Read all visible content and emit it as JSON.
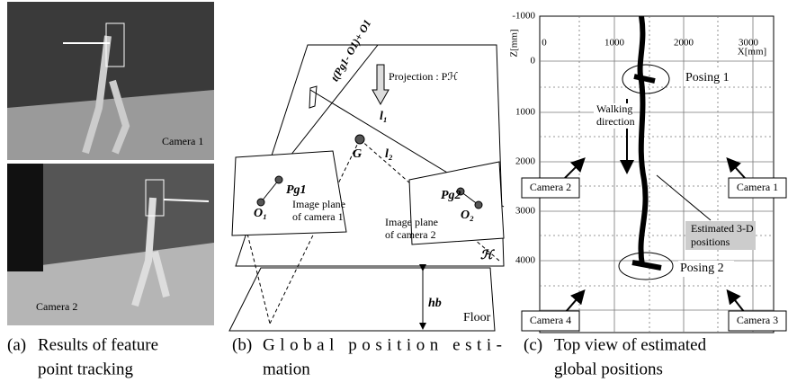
{
  "panel_a": {
    "photo_labels": [
      "Camera 1",
      "Camera 2"
    ],
    "caption": {
      "label": "(a)",
      "lines": [
        "Results of feature",
        "point tracking"
      ]
    }
  },
  "panel_b": {
    "labels": {
      "projection": "Projection : Pℋ",
      "line_expr": "t(Pg1- O1)+ O1",
      "l1": "l₁",
      "l2": "l₂",
      "g": "G",
      "pg1": "Pg1",
      "o1": "O₁",
      "pg2": "Pg2",
      "o2": "O₂",
      "h_plane": "ℋ",
      "hb": "hb",
      "floor": "Floor"
    },
    "image_plane_1": [
      "Image plane",
      "of camera 1"
    ],
    "image_plane_2": [
      "Image plane",
      "of camera 2"
    ],
    "caption": {
      "label": "(b)",
      "lines": [
        "Global position esti-",
        "mation"
      ]
    }
  },
  "panel_c": {
    "z_ticks": [
      "-1000",
      "0",
      "1000",
      "2000",
      "3000",
      "4000"
    ],
    "x_ticks": [
      "0",
      "1000",
      "2000",
      "3000"
    ],
    "z_label": "Z[mm]",
    "x_label": "X[mm]",
    "posing_1": "Posing 1",
    "posing_2": "Posing 2",
    "walking": [
      "Walking",
      "direction"
    ],
    "estimated": [
      "Estimated 3-D",
      "positions"
    ],
    "cameras": [
      "Camera 1",
      "Camera 2",
      "Camera 3",
      "Camera 4"
    ],
    "caption": {
      "label": "(c)",
      "lines": [
        "Top view of estimated",
        "global positions"
      ]
    }
  }
}
